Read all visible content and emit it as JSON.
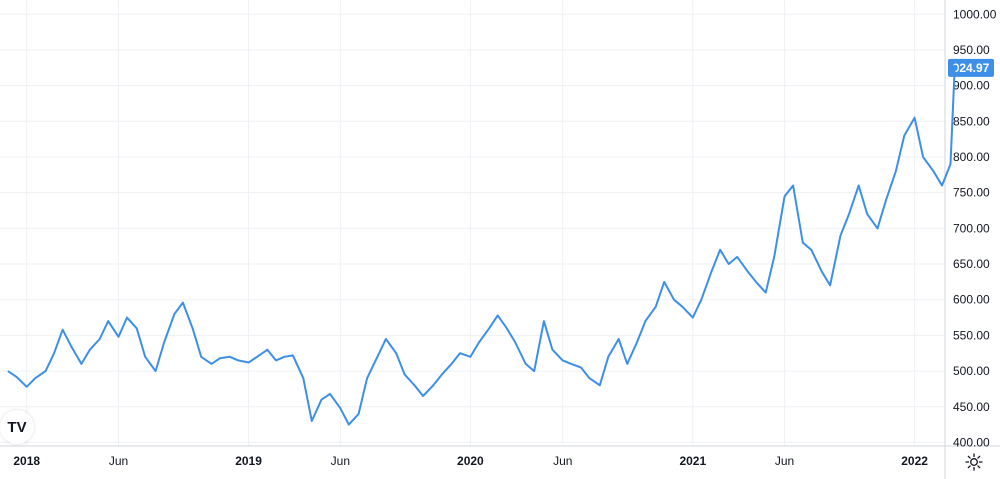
{
  "chart_data": {
    "type": "line",
    "x_start": "2017-11",
    "x_end": "2022-02",
    "ylim": [
      395,
      1020
    ],
    "y_ticks": [
      400,
      450,
      500,
      550,
      600,
      650,
      700,
      750,
      800,
      850,
      900,
      950,
      1000
    ],
    "y_tick_labels": [
      "400.00",
      "450.00",
      "500.00",
      "550.00",
      "600.00",
      "650.00",
      "700.00",
      "750.00",
      "800.00",
      "850.00",
      "900.00",
      "950.00",
      "1000.00"
    ],
    "x_ticks": [
      {
        "label": "2018",
        "date": "2018-01",
        "major": true
      },
      {
        "label": "Jun",
        "date": "2018-06",
        "major": false
      },
      {
        "label": "2019",
        "date": "2019-01",
        "major": true
      },
      {
        "label": "Jun",
        "date": "2019-06",
        "major": false
      },
      {
        "label": "2020",
        "date": "2020-01",
        "major": true
      },
      {
        "label": "Jun",
        "date": "2020-06",
        "major": false
      },
      {
        "label": "2021",
        "date": "2021-01",
        "major": true
      },
      {
        "label": "Jun",
        "date": "2021-06",
        "major": false
      },
      {
        "label": "2022",
        "date": "2022-01",
        "major": true
      }
    ],
    "series": [
      {
        "color": "#3d8fe8",
        "points": [
          [
            "2017-12-01",
            500
          ],
          [
            "2017-12-15",
            492
          ],
          [
            "2018-01-01",
            478
          ],
          [
            "2018-01-15",
            490
          ],
          [
            "2018-02-01",
            500
          ],
          [
            "2018-02-15",
            525
          ],
          [
            "2018-03-01",
            558
          ],
          [
            "2018-03-15",
            535
          ],
          [
            "2018-04-01",
            510
          ],
          [
            "2018-04-15",
            530
          ],
          [
            "2018-05-01",
            545
          ],
          [
            "2018-05-15",
            570
          ],
          [
            "2018-06-01",
            548
          ],
          [
            "2018-06-15",
            575
          ],
          [
            "2018-07-01",
            560
          ],
          [
            "2018-07-15",
            520
          ],
          [
            "2018-08-01",
            500
          ],
          [
            "2018-08-15",
            540
          ],
          [
            "2018-09-01",
            580
          ],
          [
            "2018-09-15",
            596
          ],
          [
            "2018-10-01",
            560
          ],
          [
            "2018-10-15",
            520
          ],
          [
            "2018-11-01",
            510
          ],
          [
            "2018-11-15",
            518
          ],
          [
            "2018-12-01",
            520
          ],
          [
            "2018-12-15",
            515
          ],
          [
            "2019-01-01",
            512
          ],
          [
            "2019-01-15",
            520
          ],
          [
            "2019-02-01",
            530
          ],
          [
            "2019-02-15",
            515
          ],
          [
            "2019-03-01",
            520
          ],
          [
            "2019-03-15",
            522
          ],
          [
            "2019-04-01",
            490
          ],
          [
            "2019-04-15",
            430
          ],
          [
            "2019-05-01",
            460
          ],
          [
            "2019-05-15",
            468
          ],
          [
            "2019-06-01",
            448
          ],
          [
            "2019-06-15",
            425
          ],
          [
            "2019-07-01",
            440
          ],
          [
            "2019-07-15",
            490
          ],
          [
            "2019-08-01",
            520
          ],
          [
            "2019-08-15",
            545
          ],
          [
            "2019-09-01",
            525
          ],
          [
            "2019-09-15",
            495
          ],
          [
            "2019-10-01",
            480
          ],
          [
            "2019-10-15",
            465
          ],
          [
            "2019-11-01",
            480
          ],
          [
            "2019-11-15",
            495
          ],
          [
            "2019-12-01",
            510
          ],
          [
            "2019-12-15",
            525
          ],
          [
            "2020-01-01",
            520
          ],
          [
            "2020-01-15",
            540
          ],
          [
            "2020-02-01",
            560
          ],
          [
            "2020-02-15",
            578
          ],
          [
            "2020-03-01",
            560
          ],
          [
            "2020-03-15",
            540
          ],
          [
            "2020-04-01",
            510
          ],
          [
            "2020-04-15",
            500
          ],
          [
            "2020-05-01",
            570
          ],
          [
            "2020-05-15",
            530
          ],
          [
            "2020-06-01",
            515
          ],
          [
            "2020-06-15",
            510
          ],
          [
            "2020-07-01",
            505
          ],
          [
            "2020-07-15",
            490
          ],
          [
            "2020-08-01",
            480
          ],
          [
            "2020-08-15",
            520
          ],
          [
            "2020-09-01",
            545
          ],
          [
            "2020-09-15",
            510
          ],
          [
            "2020-10-01",
            540
          ],
          [
            "2020-10-15",
            570
          ],
          [
            "2020-11-01",
            590
          ],
          [
            "2020-11-15",
            625
          ],
          [
            "2020-12-01",
            600
          ],
          [
            "2020-12-15",
            590
          ],
          [
            "2021-01-01",
            575
          ],
          [
            "2021-01-15",
            600
          ],
          [
            "2021-02-01",
            640
          ],
          [
            "2021-02-15",
            670
          ],
          [
            "2021-03-01",
            650
          ],
          [
            "2021-03-15",
            660
          ],
          [
            "2021-04-01",
            640
          ],
          [
            "2021-04-15",
            625
          ],
          [
            "2021-05-01",
            610
          ],
          [
            "2021-05-15",
            660
          ],
          [
            "2021-06-01",
            745
          ],
          [
            "2021-06-15",
            760
          ],
          [
            "2021-07-01",
            680
          ],
          [
            "2021-07-15",
            670
          ],
          [
            "2021-08-01",
            640
          ],
          [
            "2021-08-15",
            620
          ],
          [
            "2021-09-01",
            690
          ],
          [
            "2021-09-15",
            720
          ],
          [
            "2021-10-01",
            760
          ],
          [
            "2021-10-15",
            720
          ],
          [
            "2021-11-01",
            700
          ],
          [
            "2021-11-15",
            740
          ],
          [
            "2021-12-01",
            780
          ],
          [
            "2021-12-15",
            830
          ],
          [
            "2022-01-01",
            855
          ],
          [
            "2022-01-15",
            800
          ],
          [
            "2022-02-01",
            780
          ],
          [
            "2022-02-15",
            760
          ],
          [
            "2022-03-01",
            790
          ],
          [
            "2022-03-08",
            924.97
          ]
        ]
      }
    ],
    "last_value": 924.97,
    "last_value_label": "924.97",
    "grid": true,
    "watermark": "TV"
  },
  "icons": {
    "logo": "tradingview-logo",
    "settings": "gear-icon"
  }
}
